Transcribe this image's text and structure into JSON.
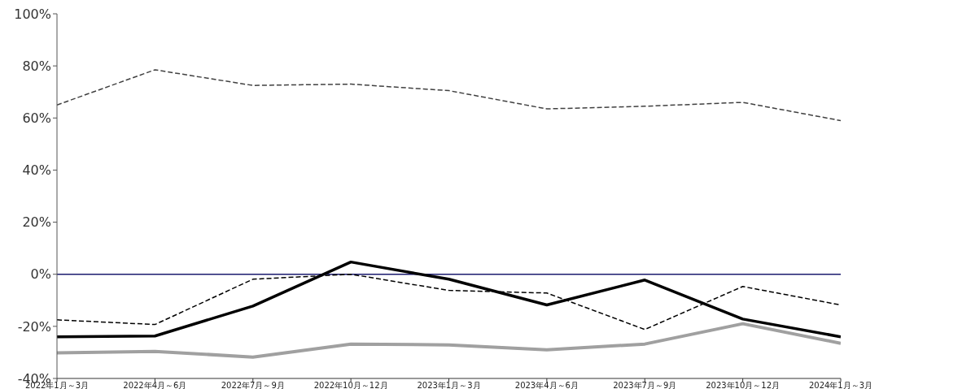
{
  "chart_data": {
    "type": "line",
    "categories": [
      "2022年1月～3月",
      "2022年4月～6月",
      "2022年7月～9月",
      "2022年10月～12月",
      "2023年1月～3月",
      "2023年4月～6月",
      "2023年7月～9月",
      "2023年10月～12月",
      "2024年1月～3月"
    ],
    "series": [
      {
        "color": "#404040",
        "line_style": "dashed",
        "values": [
          65,
          78.5,
          72.5,
          73,
          70.5,
          63.5,
          64.5,
          66,
          59
        ]
      },
      {
        "color": "#000000",
        "line_style": "dashed",
        "values": [
          -17.5,
          -19.3,
          -1.9,
          0,
          -6.2,
          -7.2,
          -21.2,
          -4.7,
          -11.8
        ]
      },
      {
        "color": "#000000",
        "line_style": "solid",
        "values": [
          -24,
          -23.7,
          -12.2,
          4.7,
          -1.9,
          -11.8,
          -2.2,
          -17.2,
          -24
        ]
      },
      {
        "color": "#a0a0a0",
        "line_style": "solid",
        "values": [
          -30.2,
          -29.6,
          -31.8,
          -26.8,
          -27.1,
          -29,
          -26.8,
          -19,
          -26.5
        ]
      }
    ],
    "ylim": [
      -40,
      100
    ],
    "yticks": [
      {
        "value": -40,
        "label": "-40%"
      },
      {
        "value": -20,
        "label": "-20%"
      },
      {
        "value": 0,
        "label": "0%"
      },
      {
        "value": 20,
        "label": "20%"
      },
      {
        "value": 40,
        "label": "40%"
      },
      {
        "value": 60,
        "label": "60%"
      },
      {
        "value": 80,
        "label": "80%"
      },
      {
        "value": 100,
        "label": "100%"
      }
    ],
    "ref_lines": [
      {
        "axis": "y",
        "value": 0,
        "color": "#1a1a6e"
      }
    ],
    "grid": false,
    "legend": false,
    "marker": "none"
  }
}
